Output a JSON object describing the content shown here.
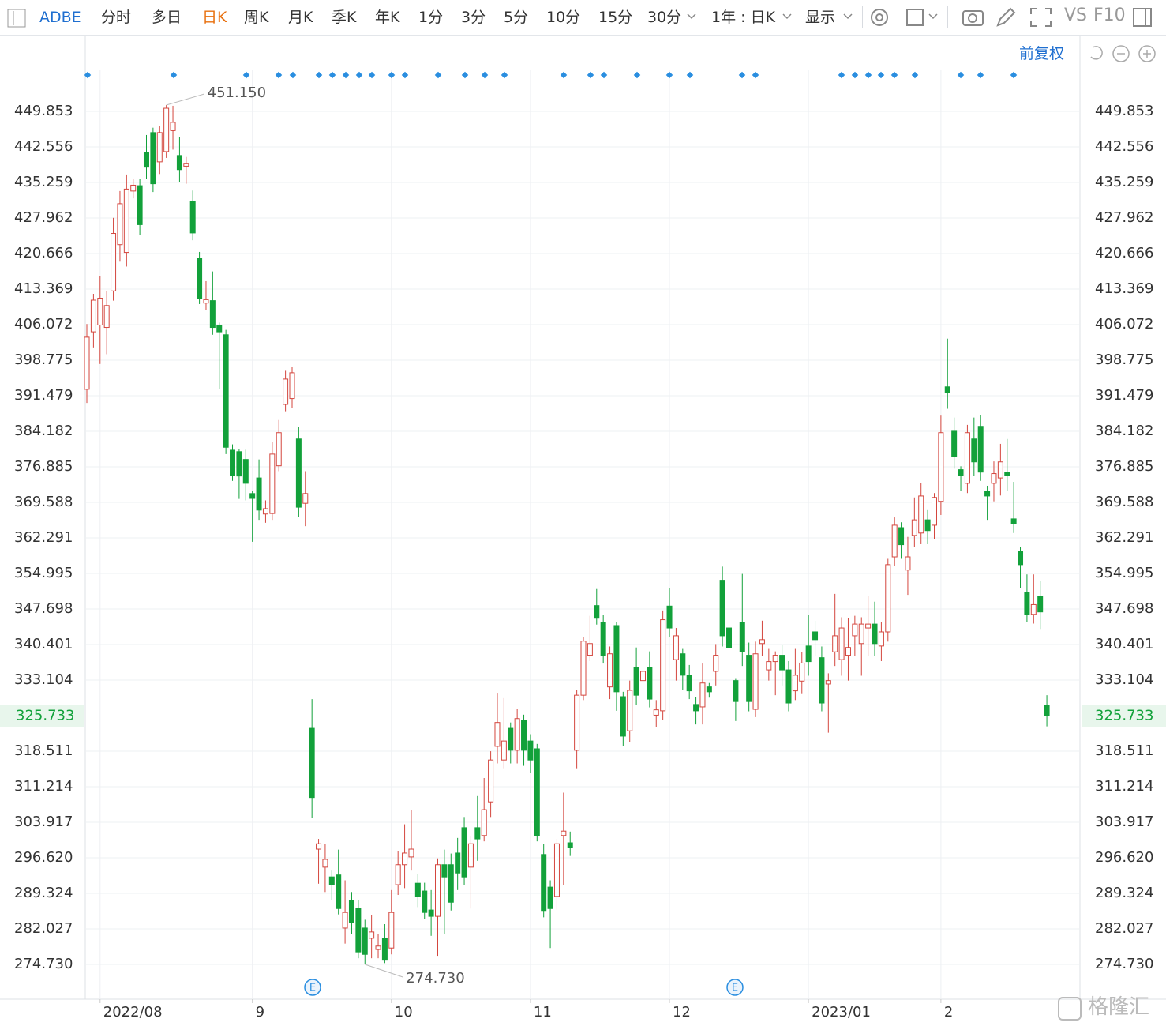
{
  "toolbar": {
    "symbol": "ADBE",
    "periods": [
      "分时",
      "多日",
      "日K",
      "周K",
      "月K",
      "季K",
      "年K",
      "1分",
      "3分",
      "5分",
      "10分",
      "15分",
      "30分"
    ],
    "range": "1年 : 日K",
    "display": "显示",
    "compare": "VS",
    "f10": "F10",
    "adjust": "前复权",
    "watermark": "格隆汇"
  },
  "chart_data": {
    "type": "candlestick",
    "up_color": "#d4463e",
    "down_color": "#12a13a",
    "ylim": [
      267.595,
      458.45
    ],
    "xlim": [
      -0.24,
      150
    ],
    "yticks": [
      449.853,
      442.556,
      435.259,
      427.962,
      420.666,
      413.369,
      406.072,
      398.775,
      391.479,
      384.182,
      376.885,
      369.588,
      362.291,
      354.995,
      347.698,
      340.401,
      333.104,
      318.511,
      311.214,
      303.917,
      {
        "value": 296.62,
        "label": "296.620"
      },
      289.324,
      282.027,
      {
        "value": 274.73,
        "label": "274.730"
      }
    ],
    "xticks": [
      {
        "value": 2,
        "label": "2022/08"
      },
      {
        "value": 25,
        "label": "9"
      },
      {
        "value": 46,
        "label": "10"
      },
      {
        "value": 67,
        "label": "11"
      },
      {
        "value": 88,
        "label": "12"
      },
      {
        "value": 109,
        "label": "2023/01"
      },
      {
        "value": 129,
        "label": "2"
      }
    ],
    "grid": true,
    "last_price": 325.733,
    "annotations": [
      {
        "value": 451.15,
        "label": "451.150"
      },
      {
        "value": 274.73,
        "label": "274.730"
      }
    ],
    "events": [
      "E",
      "E"
    ],
    "candles": [
      [
        392.8,
        406.2,
        390.0,
        403.5
      ],
      [
        404.6,
        412.4,
        401.4,
        411.1
      ],
      [
        406,
        416,
        398,
        411.5
      ],
      [
        405.5,
        413,
        400,
        410
      ],
      [
        413,
        428,
        411,
        424.8
      ],
      [
        422.5,
        433.5,
        419,
        430.9
      ],
      [
        420.9,
        436.9,
        418,
        433.9
      ],
      [
        433.5,
        436,
        432,
        434.7
      ],
      [
        434.6,
        436,
        424.4,
        426.6
      ],
      [
        441.5,
        445,
        436,
        438.4
      ],
      [
        445.5,
        446.5,
        433.3,
        435
      ],
      [
        439.5,
        446.9,
        437,
        445.5
      ],
      [
        441.6,
        451.15,
        440.3,
        450.5
      ],
      [
        445.9,
        451,
        442,
        447.6
      ],
      [
        440.8,
        444.6,
        435.3,
        437.9
      ],
      [
        438.6,
        440.5,
        435,
        439.2
      ],
      [
        431.4,
        433.6,
        423.4,
        424.9
      ],
      [
        419.7,
        421,
        410.3,
        411.5
      ],
      [
        410.5,
        415,
        409,
        411.2
      ],
      [
        411,
        417,
        404,
        405.5
      ],
      [
        405.9,
        406.5,
        392.8,
        404.6
      ],
      [
        404,
        405,
        379.5,
        380.9
      ],
      [
        380.3,
        381.5,
        374,
        375.1
      ],
      [
        380,
        380.5,
        370.3,
        375
      ],
      [
        378.4,
        380.4,
        370,
        373.5
      ],
      [
        371.4,
        372,
        361.5,
        370.4
      ],
      [
        374.6,
        378.4,
        366,
        368
      ],
      [
        367.2,
        370,
        365.4,
        368.3
      ],
      [
        367.3,
        382,
        366,
        379.5
      ],
      [
        377.1,
        386.5,
        376,
        383.9
      ],
      [
        389.7,
        396.6,
        388.3,
        394.9
      ],
      [
        390.9,
        397.4,
        388.9,
        396.2
      ],
      [
        382.6,
        385,
        366.6,
        368.6
      ],
      [
        369.4,
        376,
        364.7,
        371.4
      ],
      [
        323.2,
        329.2,
        304.9,
        309
      ],
      [
        298.4,
        300.5,
        291.3,
        299.5
      ],
      [
        294.7,
        299.5,
        289.6,
        296.3
      ],
      [
        292.7,
        294,
        288,
        291.1
      ],
      [
        293.1,
        298.3,
        285,
        286.2
      ],
      [
        282.2,
        292,
        279,
        285.4
      ],
      [
        287.9,
        289.6,
        280.9,
        283.3
      ],
      [
        286.2,
        288,
        276,
        277.3
      ],
      [
        282.2,
        283.9,
        274.73,
        276.8
      ],
      [
        280.1,
        284.8,
        276,
        281.4
      ],
      [
        277.8,
        281,
        276,
        278.5
      ],
      [
        280.1,
        283,
        275,
        275.6
      ],
      [
        278.1,
        290,
        276.8,
        285.4
      ],
      [
        291.1,
        298,
        289,
        295.2
      ],
      [
        295.2,
        303.5,
        290.4,
        297.6
      ],
      [
        296.8,
        306.5,
        294,
        298.4
      ],
      [
        291.4,
        293.3,
        286.5,
        288.7
      ],
      [
        289.8,
        291.5,
        284,
        285.4
      ],
      [
        285.9,
        290,
        280.6,
        284.6
      ],
      [
        284.6,
        296.5,
        276.5,
        295.2
      ],
      [
        295.2,
        298.3,
        281,
        292.7
      ],
      [
        295.2,
        297.5,
        285.8,
        287.5
      ],
      [
        297.6,
        300.7,
        290,
        293.5
      ],
      [
        302.8,
        305,
        291,
        292.7
      ],
      [
        294.7,
        301,
        286.2,
        299.5
      ],
      [
        302.8,
        309.3,
        296,
        300.5
      ],
      [
        301.2,
        313,
        300,
        306.5
      ],
      [
        308.1,
        318.5,
        305,
        316.7
      ],
      [
        319.5,
        330.5,
        316,
        324.4
      ],
      [
        316.7,
        329.4,
        315,
        320.6
      ],
      [
        323.2,
        324.4,
        316,
        318.7
      ],
      [
        318.7,
        327.2,
        316,
        325.2
      ],
      [
        324.8,
        326,
        315.5,
        318.7
      ],
      [
        320.6,
        322,
        314,
        316.7
      ],
      [
        319,
        320,
        300,
        301.2
      ],
      [
        297.3,
        299.4,
        284.4,
        285.8
      ],
      [
        290.6,
        292,
        278.1,
        286.2
      ],
      [
        288.7,
        300.5,
        286,
        299.5
      ],
      [
        301.2,
        310,
        291,
        302.1
      ],
      [
        299.7,
        302,
        297,
        298.7
      ],
      [
        318.7,
        331.1,
        315,
        330
      ],
      [
        330,
        342,
        329,
        341.1
      ],
      [
        338.2,
        346.3,
        337,
        340.6
      ],
      [
        348.4,
        351.8,
        344.5,
        345.8
      ],
      [
        345,
        346.5,
        336.5,
        338.2
      ],
      [
        331.7,
        340,
        329.2,
        338.5
      ],
      [
        344.3,
        345,
        326.8,
        330.7
      ],
      [
        329.7,
        330.7,
        319.6,
        321.6
      ],
      [
        322.7,
        333,
        320.3,
        331
      ],
      [
        335.7,
        339.8,
        328,
        330
      ],
      [
        333,
        338,
        332,
        334.9
      ],
      [
        335.7,
        339,
        327.5,
        329.2
      ],
      [
        325.9,
        329,
        323.5,
        327
      ],
      [
        326.8,
        347.4,
        325,
        345.5
      ],
      [
        348.3,
        352,
        342,
        343.8
      ],
      [
        337.3,
        343.8,
        333,
        342.2
      ],
      [
        338.5,
        339.5,
        331,
        334.1
      ],
      [
        334.1,
        336.2,
        329.2,
        330.9
      ],
      [
        328.1,
        329.7,
        324,
        326.8
      ],
      [
        327.6,
        336.5,
        324,
        332.5
      ],
      [
        331.7,
        332.5,
        329.5,
        330.7
      ],
      [
        334.9,
        340.5,
        332,
        338.2
      ],
      [
        353.6,
        356.4,
        340,
        342.2
      ],
      [
        343.8,
        348.6,
        337,
        339.8
      ],
      [
        333,
        333.5,
        324.7,
        328.7
      ],
      [
        345,
        354.9,
        336,
        339
      ],
      [
        338.2,
        340.8,
        326.7,
        328.7
      ],
      [
        327.1,
        341,
        325.5,
        338.5
      ],
      [
        340.6,
        345.3,
        338,
        341.4
      ],
      [
        335.2,
        339.5,
        333,
        336.9
      ],
      [
        336.9,
        339,
        330,
        338.2
      ],
      [
        338.2,
        340.4,
        332,
        335.2
      ],
      [
        335.2,
        337,
        326.7,
        328.4
      ],
      [
        330.9,
        339.5,
        329,
        334.1
      ],
      [
        332.9,
        338.8,
        330.4,
        336.6
      ],
      [
        340.1,
        346.5,
        334,
        336.9
      ],
      [
        343,
        345.3,
        338,
        341.4
      ],
      [
        337.7,
        340,
        326.7,
        328.4
      ],
      [
        332.3,
        334.5,
        322.3,
        333
      ],
      [
        338.9,
        350.8,
        336,
        342.2
      ],
      [
        337.3,
        346,
        334,
        343.8
      ],
      [
        338.2,
        345.8,
        333,
        339.8
      ],
      [
        342.2,
        346.3,
        338,
        344.6
      ],
      [
        340.6,
        346,
        334,
        344.6
      ],
      [
        343.8,
        350.3,
        338,
        344.6
      ],
      [
        344.6,
        349.2,
        338,
        340.6
      ],
      [
        340.1,
        345,
        337,
        343
      ],
      [
        343,
        358,
        341,
        356.8
      ],
      [
        358.4,
        366.5,
        356.5,
        364.9
      ],
      [
        364.4,
        365.5,
        358,
        360.9
      ],
      [
        355.7,
        362.5,
        350.6,
        358.4
      ],
      [
        362.8,
        370.6,
        360.5,
        366
      ],
      [
        363.3,
        373.5,
        361,
        370.9
      ],
      [
        366,
        368,
        361,
        363.8
      ],
      [
        364.9,
        371.5,
        362,
        370.6
      ],
      [
        369.8,
        387.4,
        367,
        383.9
      ],
      [
        393.3,
        403.2,
        388.8,
        392.2
      ],
      [
        384.2,
        387,
        376.5,
        379
      ],
      [
        376.3,
        377,
        372,
        375.1
      ],
      [
        373.5,
        385.5,
        371.5,
        383.9
      ],
      [
        382.6,
        387,
        375,
        377.9
      ],
      [
        385.2,
        387.5,
        374,
        375.8
      ],
      [
        371.9,
        373,
        366,
        370.9
      ],
      [
        373.5,
        378,
        369.8,
        375.5
      ],
      [
        374.6,
        381.6,
        371,
        377.9
      ],
      [
        375.8,
        382.6,
        372,
        375.1
      ],
      [
        366.2,
        373.8,
        363.3,
        365.2
      ],
      [
        359.6,
        360.5,
        352,
        356.8
      ],
      [
        351.1,
        354.8,
        344.97,
        346.6
      ],
      [
        346.6,
        354.8,
        344.7,
        348.6
      ],
      [
        350.3,
        353.5,
        343.6,
        347.1
      ],
      [
        327.9,
        330,
        323.6,
        325.733
      ]
    ]
  }
}
